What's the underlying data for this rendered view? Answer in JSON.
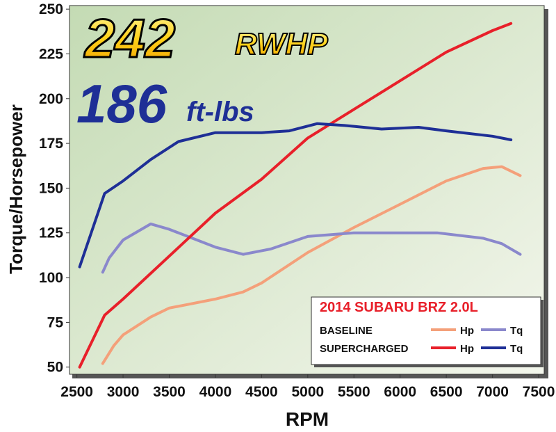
{
  "chart_data": {
    "type": "line",
    "annotations": [
      "242",
      "RWHP",
      "186",
      "ft-lbs"
    ],
    "xlabel": "RPM",
    "ylabel": "Torque/Horsepower",
    "legend_title": "2014 SUBARU BRZ 2.0L",
    "xlim": [
      2420,
      7560
    ],
    "ylim": [
      46,
      252
    ],
    "xticks": [
      2500,
      3000,
      3500,
      4000,
      4500,
      5000,
      5500,
      6000,
      6500,
      7000,
      7500
    ],
    "yticks": [
      50,
      75,
      100,
      125,
      150,
      175,
      200,
      225,
      250
    ],
    "series": [
      {
        "group": "BASELINE",
        "name": "Hp",
        "color": "#f4a07a",
        "x": [
          2780,
          2900,
          3000,
          3300,
          3500,
          3700,
          4000,
          4300,
          4500,
          5000,
          5500,
          6000,
          6500,
          6900,
          7100,
          7300
        ],
        "values": [
          52,
          62,
          68,
          78,
          83,
          85,
          88,
          92,
          97,
          114,
          128,
          141,
          154,
          161,
          162,
          157
        ]
      },
      {
        "group": "BASELINE",
        "name": "Tq",
        "color": "#8a88cc",
        "x": [
          2780,
          2850,
          3000,
          3300,
          3500,
          4000,
          4300,
          4600,
          5000,
          5500,
          6000,
          6400,
          6900,
          7100,
          7300
        ],
        "values": [
          103,
          111,
          121,
          130,
          127,
          117,
          113,
          116,
          123,
          125,
          125,
          125,
          122,
          119,
          113
        ]
      },
      {
        "group": "SUPERCHARGED",
        "name": "Hp",
        "color": "#e8202a",
        "x": [
          2530,
          2800,
          3000,
          3500,
          4000,
          4500,
          5000,
          5500,
          6000,
          6500,
          7000,
          7200
        ],
        "values": [
          50,
          79,
          88,
          112,
          136,
          155,
          178,
          194,
          210,
          226,
          238,
          242
        ]
      },
      {
        "group": "SUPERCHARGED",
        "name": "Tq",
        "color": "#1e2f96",
        "x": [
          2530,
          2800,
          3000,
          3300,
          3600,
          4000,
          4500,
          4800,
          5100,
          5400,
          5800,
          6200,
          6500,
          7000,
          7200
        ],
        "values": [
          106,
          147,
          154,
          166,
          176,
          181,
          181,
          182,
          186,
          185,
          183,
          184,
          182,
          179,
          177
        ]
      }
    ]
  }
}
